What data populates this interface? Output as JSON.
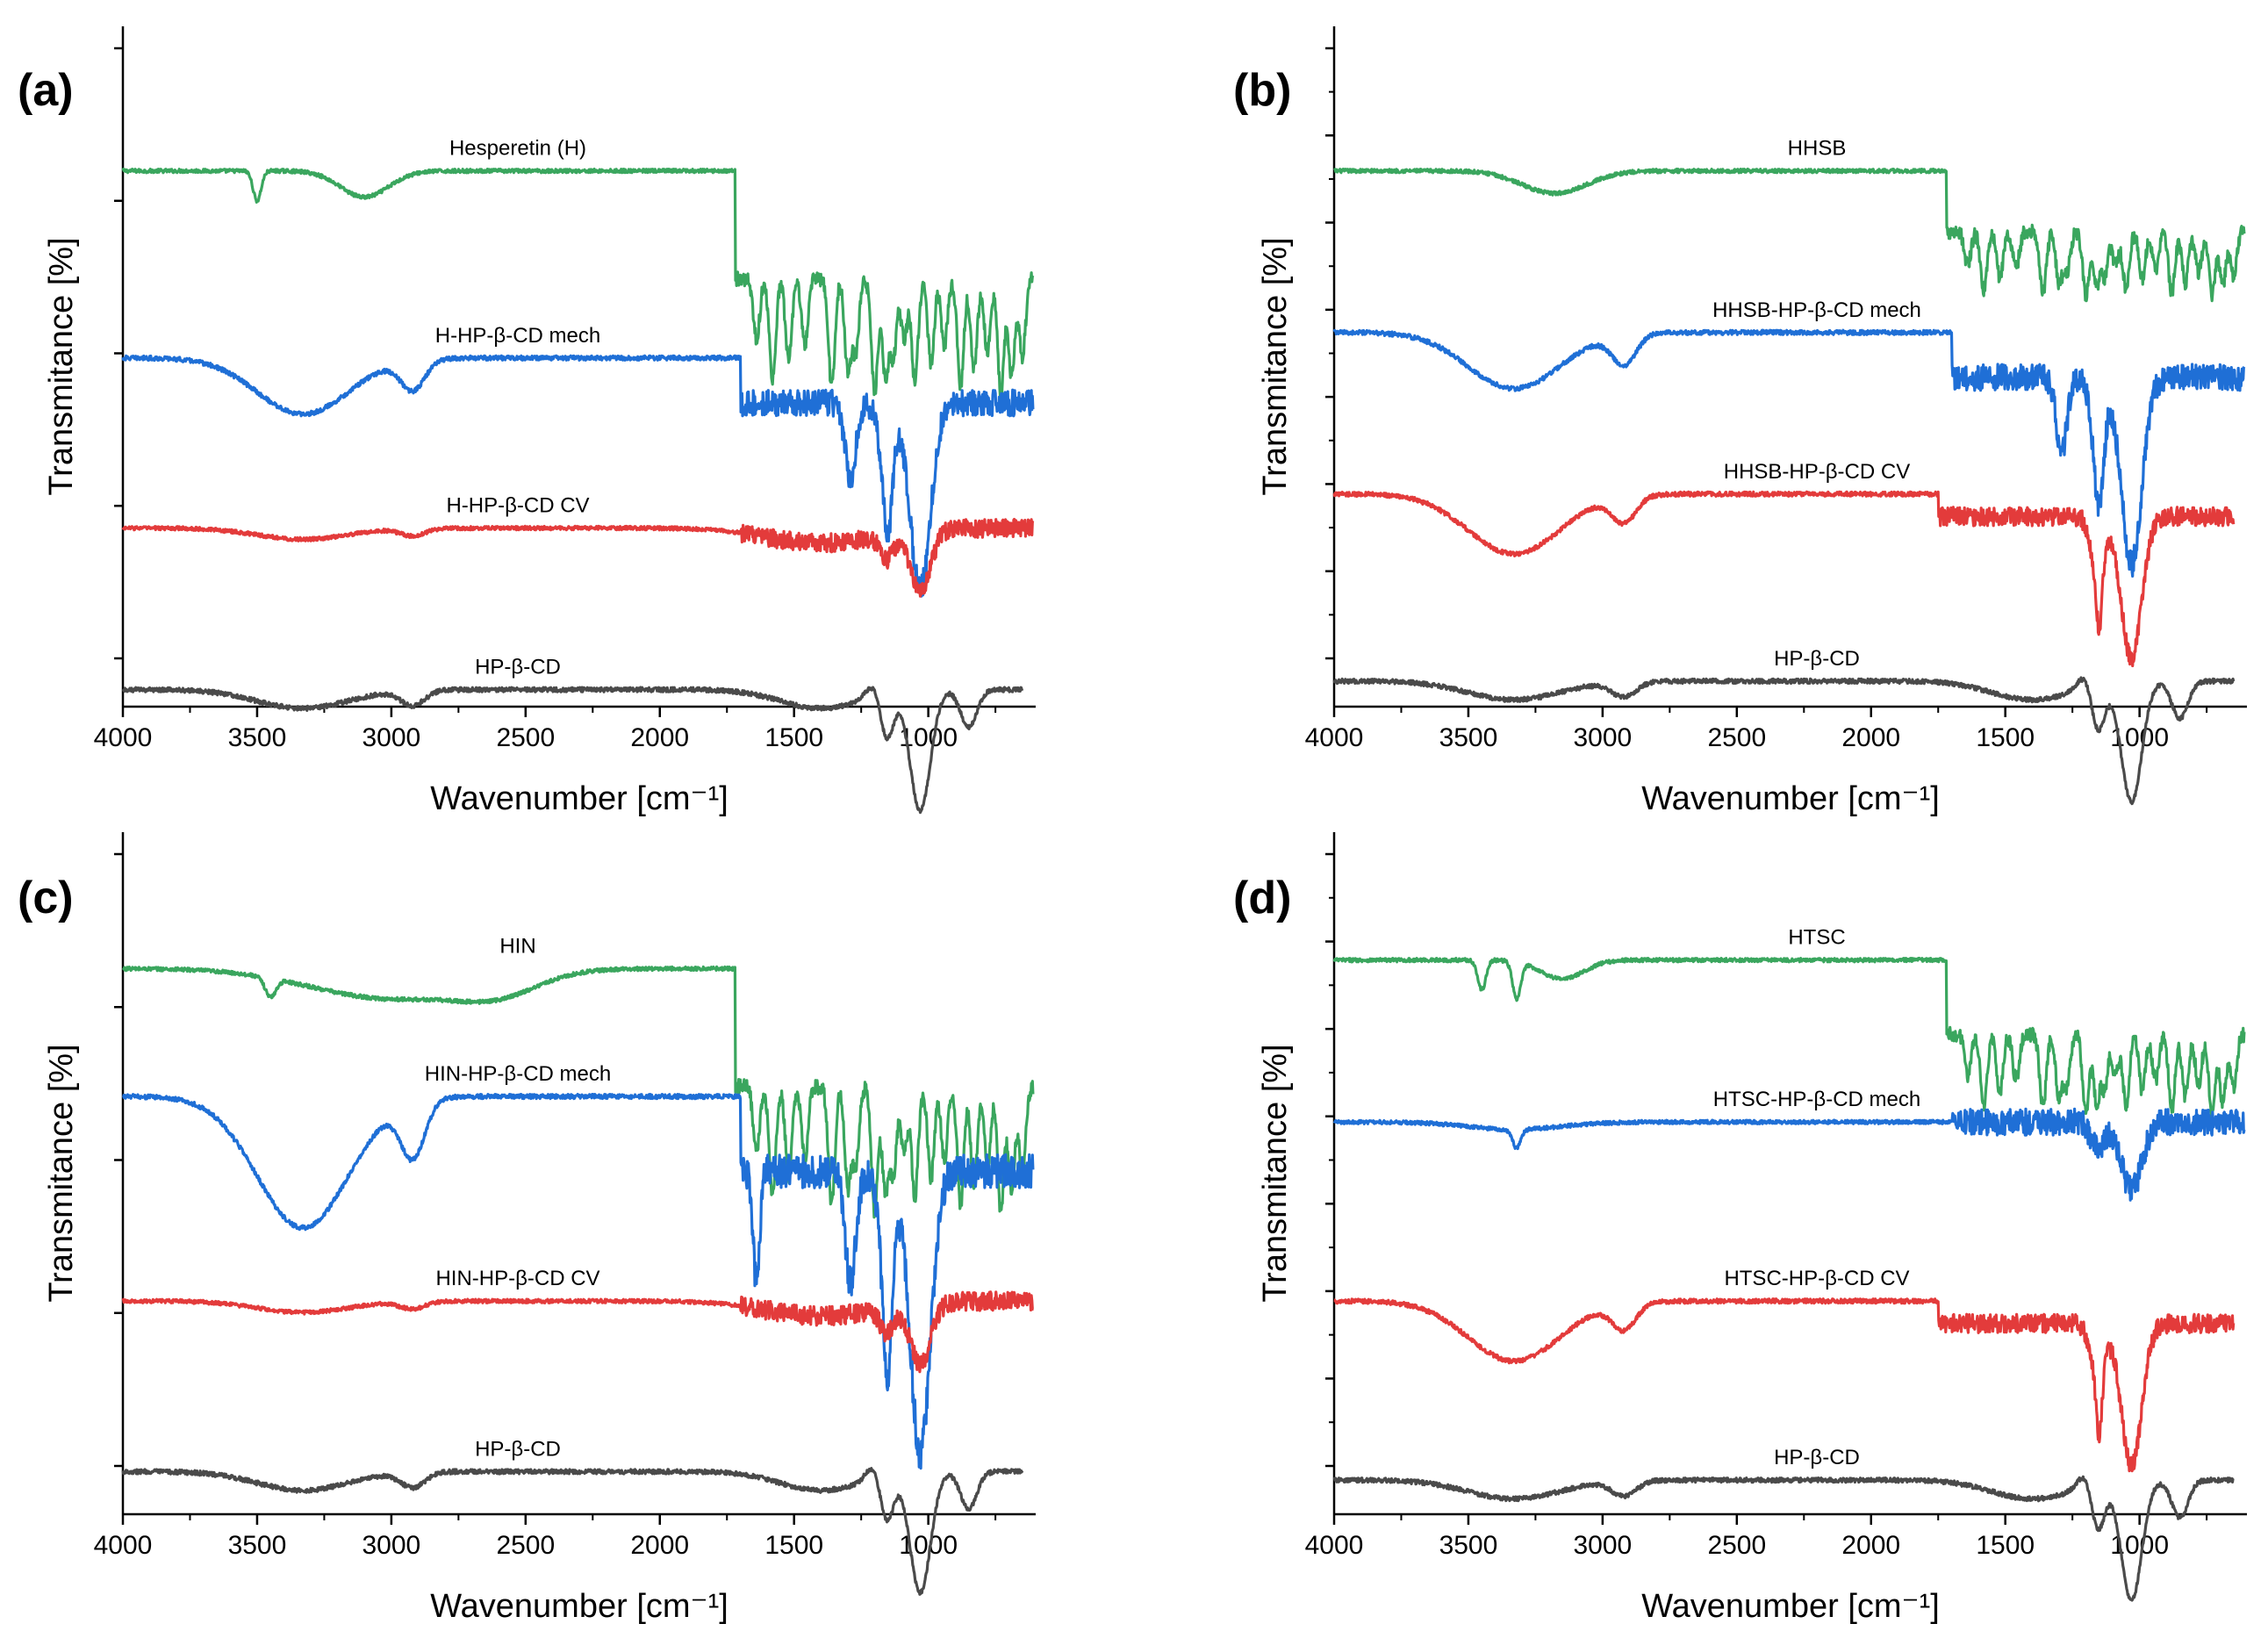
{
  "figure": {
    "colors": {
      "green": "#3aa65e",
      "blue": "#1f6fd6",
      "red": "#e33b3b",
      "gray": "#4a4a4a",
      "axis": "#000000"
    }
  },
  "chart_data": [
    {
      "type": "line",
      "panel": "(a)",
      "xlabel": "Wavenumber [cm⁻¹]",
      "ylabel": "Transmitance [%]",
      "xlim": [
        4000,
        600
      ],
      "xticks": [
        "4000",
        "3500",
        "3000",
        "2500",
        "2000",
        "1500",
        "1000"
      ],
      "series": [
        {
          "name": "Hesperetin (H)",
          "color": "green",
          "offset": 3.15,
          "profile": "H"
        },
        {
          "name": "H-HP-β-CD mech",
          "color": "blue",
          "offset": 2.05,
          "profile": "mech"
        },
        {
          "name": "H-HP-β-CD CV",
          "color": "red",
          "offset": 1.05,
          "profile": "cv_flat"
        },
        {
          "name": "HP-β-CD",
          "color": "gray",
          "offset": 0.1,
          "profile": "hpbcd"
        }
      ]
    },
    {
      "type": "line",
      "panel": "(b)",
      "xlabel": "Wavenumber [cm⁻¹]",
      "ylabel": "Transmitance [%]",
      "xlim": [
        4000,
        600
      ],
      "xticks": [
        "4000",
        "3500",
        "3000",
        "2500",
        "2000",
        "1500",
        "1000"
      ],
      "series": [
        {
          "name": "HHSB",
          "color": "green",
          "offset": 3.15,
          "profile": "HHSB"
        },
        {
          "name": "HHSB-HP-β-CD mech",
          "color": "blue",
          "offset": 2.2,
          "profile": "mech"
        },
        {
          "name": "HHSB-HP-β-CD CV",
          "color": "red",
          "offset": 1.25,
          "profile": "cv_deep"
        },
        {
          "name": "HP-β-CD",
          "color": "gray",
          "offset": 0.15,
          "profile": "hpbcd"
        }
      ]
    },
    {
      "type": "line",
      "panel": "(c)",
      "xlabel": "Wavenumber [cm⁻¹]",
      "ylabel": "Transmitance [%]",
      "xlim": [
        4000,
        600
      ],
      "xticks": [
        "4000",
        "3500",
        "3000",
        "2500",
        "2000",
        "1500",
        "1000"
      ],
      "series": [
        {
          "name": "HIN",
          "color": "green",
          "offset": 3.2,
          "profile": "HIN"
        },
        {
          "name": "HIN-HP-β-CD mech",
          "color": "blue",
          "offset": 2.45,
          "profile": "mech_deep"
        },
        {
          "name": "HIN-HP-β-CD CV",
          "color": "red",
          "offset": 1.25,
          "profile": "cv_flat"
        },
        {
          "name": "HP-β-CD",
          "color": "gray",
          "offset": 0.25,
          "profile": "hpbcd"
        }
      ]
    },
    {
      "type": "line",
      "panel": "(d)",
      "xlabel": "Wavenumber [cm⁻¹]",
      "ylabel": "Transmitance [%]",
      "xlim": [
        4000,
        600
      ],
      "xticks": [
        "4000",
        "3500",
        "3000",
        "2500",
        "2000",
        "1500",
        "1000"
      ],
      "series": [
        {
          "name": "HTSC",
          "color": "green",
          "offset": 3.25,
          "profile": "HTSC"
        },
        {
          "name": "HTSC-HP-β-CD mech",
          "color": "blue",
          "offset": 2.3,
          "profile": "mech_flat"
        },
        {
          "name": "HTSC-HP-β-CD CV",
          "color": "red",
          "offset": 1.25,
          "profile": "cv_deep"
        },
        {
          "name": "HP-β-CD",
          "color": "gray",
          "offset": 0.2,
          "profile": "hpbcd"
        }
      ]
    }
  ]
}
